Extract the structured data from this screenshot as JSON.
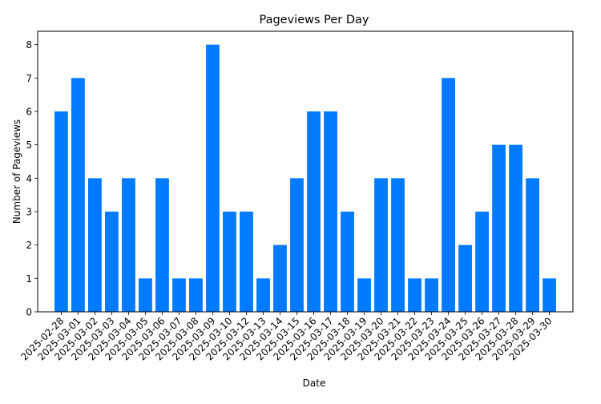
{
  "chart_data": {
    "type": "bar",
    "title": "Pageviews Per Day",
    "xlabel": "Date",
    "ylabel": "Number of Pageviews",
    "ylim": [
      0,
      8.4
    ],
    "yticks": [
      0,
      1,
      2,
      3,
      4,
      5,
      6,
      7,
      8
    ],
    "grid": false,
    "bar_color": "#007bff",
    "categories": [
      "2025-02-28",
      "2025-03-01",
      "2025-03-02",
      "2025-03-03",
      "2025-03-04",
      "2025-03-05",
      "2025-03-06",
      "2025-03-07",
      "2025-03-08",
      "2025-03-09",
      "2025-03-10",
      "2025-03-12",
      "2025-03-13",
      "2025-03-14",
      "2025-03-15",
      "2025-03-16",
      "2025-03-17",
      "2025-03-18",
      "2025-03-19",
      "2025-03-20",
      "2025-03-21",
      "2025-03-22",
      "2025-03-23",
      "2025-03-24",
      "2025-03-25",
      "2025-03-26",
      "2025-03-27",
      "2025-03-28",
      "2025-03-29",
      "2025-03-30"
    ],
    "values": [
      6,
      7,
      4,
      3,
      4,
      1,
      4,
      1,
      1,
      8,
      3,
      3,
      1,
      2,
      4,
      6,
      6,
      3,
      1,
      4,
      4,
      1,
      1,
      7,
      2,
      3,
      5,
      5,
      4,
      1
    ]
  }
}
